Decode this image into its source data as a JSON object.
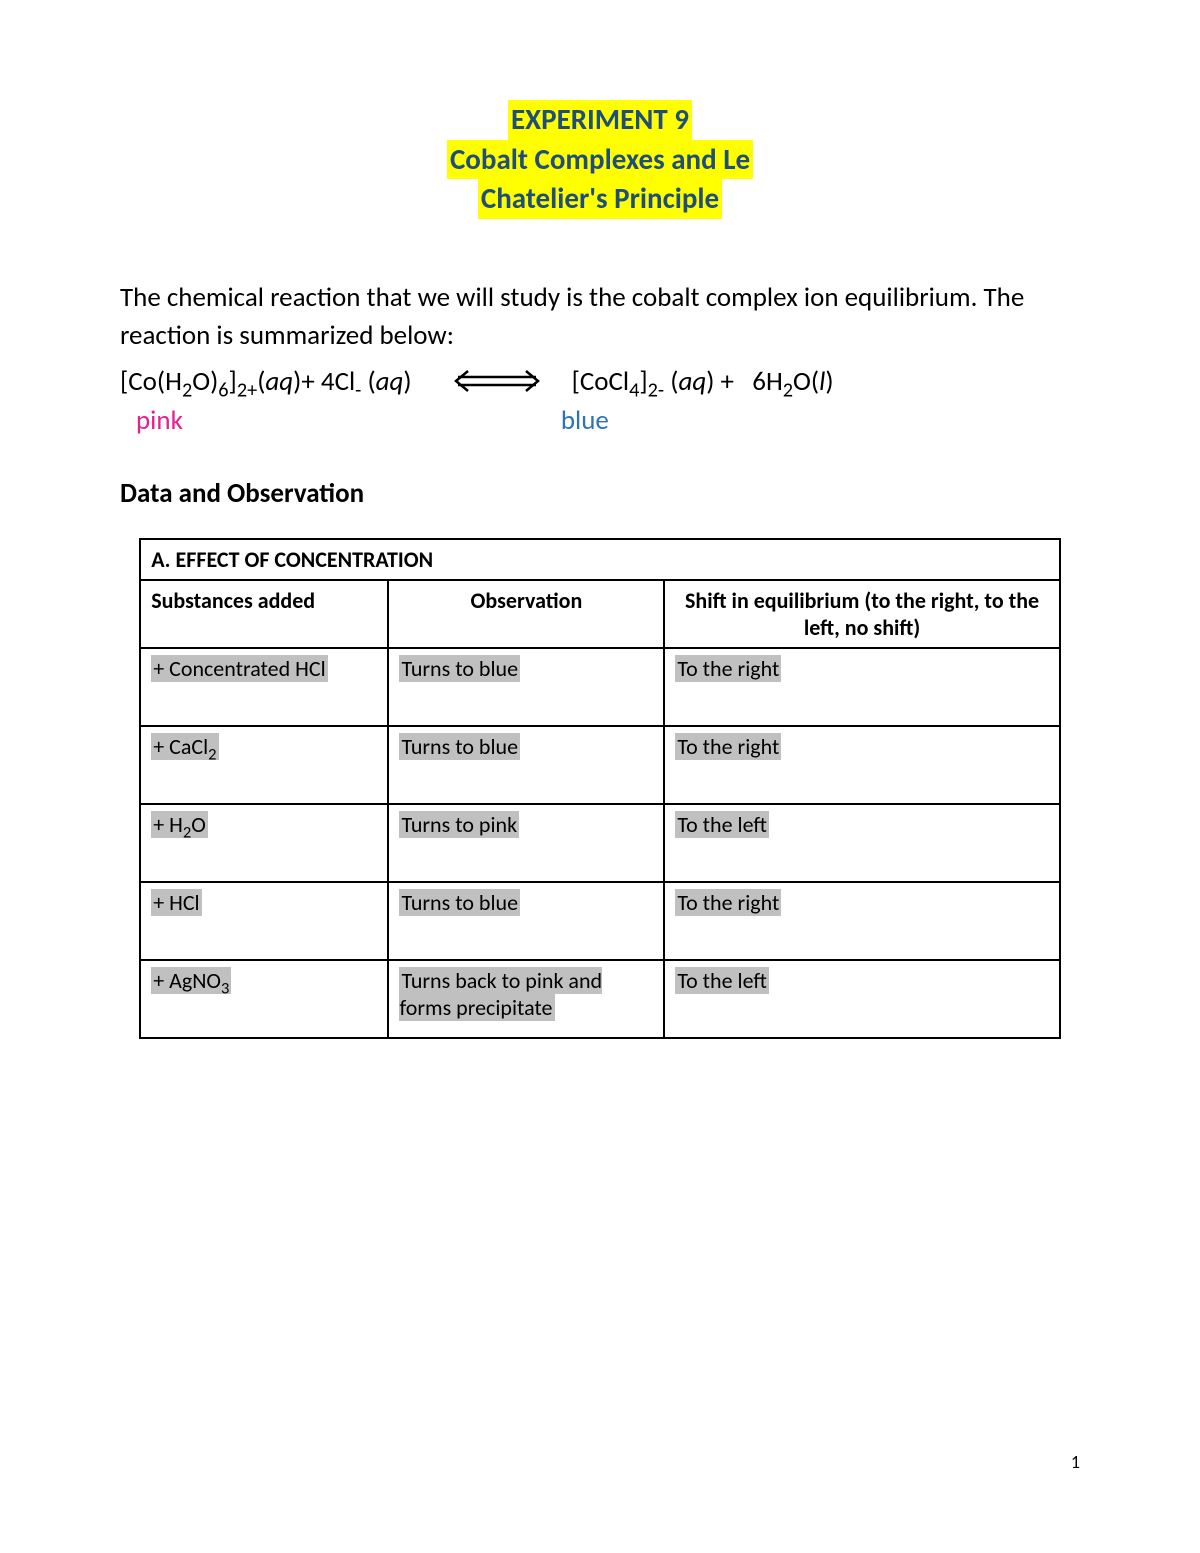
{
  "title": {
    "line1": "EXPERIMENT 9",
    "line2": "Cobalt Complexes and Le",
    "line3": "Chatelier's Principle"
  },
  "intro": "The chemical reaction that we will study is the cobalt complex ion equilibrium. The reaction is summarized below:",
  "equation": {
    "left_html": "[Co(H<span class='sub'>2</span>O)<span class='sub'>6</span>]<span class='sub'>2+</span>(<span class='ital'>aq</span>)+ 4Cl<span class='sub'>-</span> (<span class='ital'>aq</span>)",
    "right_html": "[CoCl<span class='sub'>4</span>]<span class='sub'>2-</span> (<span class='ital'>aq</span>) +&nbsp;&nbsp;&nbsp;6H<span class='sub'>2</span>O(<span class='ital'>l</span>)",
    "pink_label": "pink",
    "blue_label": "blue"
  },
  "section_heading": "Data and Observation",
  "table": {
    "title": "A. EFFECT OF CONCENTRATION",
    "columns": [
      "Substances added",
      "Observation",
      "Shift in equilibrium (to the right, to the left, no shift)"
    ],
    "col_widths": [
      "27%",
      "30%",
      "43%"
    ],
    "rows": [
      {
        "substance_html": "+ Concentrated HCl",
        "observation": "Turns to blue",
        "shift": "To the right"
      },
      {
        "substance_html": "+ CaCl<span class='sub'>2</span>",
        "observation": "Turns to blue",
        "shift": "To the right"
      },
      {
        "substance_html": "+ H<span class='sub'>2</span>O",
        "observation": "Turns to pink",
        "shift": "To the left"
      },
      {
        "substance_html": "+ HCl",
        "observation": "Turns to blue",
        "shift": "To the right"
      },
      {
        "substance_html": "+ AgNO<span class='sub'>3</span>",
        "observation": "Turns back to pink and forms precipitate",
        "shift": "To the left"
      }
    ]
  },
  "page_number": "1",
  "colors": {
    "highlight_bg": "#ffff00",
    "title_text": "#1f4e79",
    "pink": "#e91e8c",
    "blue": "#2e74b5",
    "cell_highlight": "#c0c0c0",
    "border": "#000000",
    "background": "#ffffff"
  }
}
